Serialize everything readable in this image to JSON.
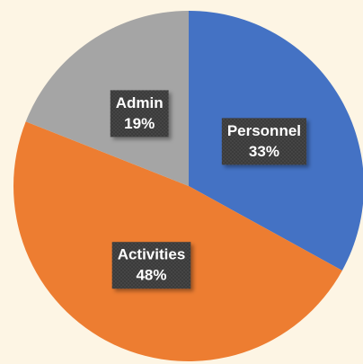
{
  "chart_data": {
    "type": "pie",
    "categories": [
      "Personnel",
      "Activities",
      "Admin"
    ],
    "values": [
      33,
      48,
      19
    ],
    "value_labels": [
      "33%",
      "48%",
      "19%"
    ],
    "colors": [
      "#4472c4",
      "#ed7d31",
      "#a5a5a5"
    ]
  }
}
